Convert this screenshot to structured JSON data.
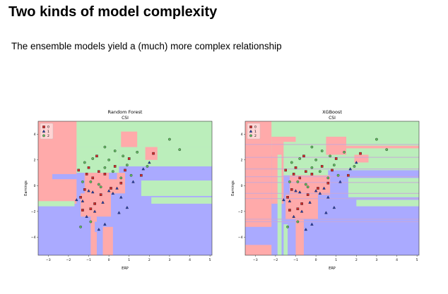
{
  "slide": {
    "title": "Two kinds of model complexity",
    "subtitle": "The ensemble models yield a (much) more complex relationship"
  },
  "colors": {
    "class_0_region": "#ffaaaa",
    "class_1_region": "#aaaaff",
    "class_2_region": "#bbeebb",
    "class_0_marker": "#d62728",
    "class_1_marker": "#1f3bb3",
    "class_2_marker": "#5fbf5f"
  },
  "chart_data": [
    {
      "type": "scatter",
      "title": "Random Forest",
      "subtitle": "CSI",
      "xlabel": "ERP",
      "ylabel": "Earnings",
      "xlim": [
        -3.5,
        5.1
      ],
      "ylim": [
        -5.4,
        5.0
      ],
      "xticks": [
        -3,
        -2,
        -1,
        0,
        1,
        2,
        3,
        4,
        5
      ],
      "yticks": [
        -4,
        -2,
        0,
        2,
        4
      ],
      "legend": {
        "placement": "top-left",
        "entries": [
          "0",
          "1",
          "2"
        ]
      },
      "series": [
        {
          "name": "0",
          "marker": "square",
          "points": [
            [
              -1.0,
              1.4
            ],
            [
              -0.8,
              0.6
            ],
            [
              -1.2,
              -0.3
            ],
            [
              -0.5,
              1.1
            ],
            [
              0.3,
              1.5
            ],
            [
              -0.9,
              -1.8
            ],
            [
              -1.4,
              -0.9
            ],
            [
              -0.6,
              2.3
            ],
            [
              0.6,
              0.2
            ],
            [
              -1.1,
              0.9
            ],
            [
              -0.4,
              -0.7
            ],
            [
              1.0,
              2.1
            ],
            [
              -0.7,
              -1.4
            ],
            [
              0.8,
              1.2
            ],
            [
              -1.5,
              1.2
            ],
            [
              2.2,
              2.5
            ],
            [
              1.6,
              0.8
            ],
            [
              -0.2,
              0.9
            ],
            [
              -1.3,
              -1.9
            ],
            [
              0.1,
              -0.2
            ]
          ]
        },
        {
          "name": "1",
          "marker": "triangle",
          "points": [
            [
              -1.6,
              -1.1
            ],
            [
              -0.8,
              -0.5
            ],
            [
              -0.3,
              -1.3
            ],
            [
              0.6,
              -0.9
            ],
            [
              0.2,
              -0.6
            ],
            [
              -1.0,
              -0.4
            ],
            [
              0.5,
              -2.1
            ],
            [
              -0.7,
              -2.0
            ],
            [
              1.2,
              0.3
            ],
            [
              -0.2,
              -3.0
            ],
            [
              0.9,
              -1.7
            ],
            [
              -1.1,
              -2.4
            ],
            [
              0.0,
              -0.4
            ],
            [
              1.7,
              1.3
            ],
            [
              -0.5,
              -3.4
            ],
            [
              0.4,
              -0.2
            ],
            [
              -1.3,
              -1.2
            ],
            [
              2.0,
              1.8
            ]
          ]
        },
        {
          "name": "2",
          "marker": "circle",
          "points": [
            [
              -1.2,
              1.8
            ],
            [
              0.6,
              0.6
            ],
            [
              0.0,
              2.0
            ],
            [
              -0.9,
              0.3
            ],
            [
              0.9,
              1.6
            ],
            [
              -0.5,
              0.1
            ],
            [
              1.4,
              2.6
            ],
            [
              3.0,
              3.6
            ],
            [
              3.5,
              2.8
            ],
            [
              -0.2,
              1.4
            ],
            [
              -1.3,
              0.3
            ],
            [
              0.3,
              2.7
            ],
            [
              -0.8,
              2.1
            ],
            [
              1.1,
              0.8
            ],
            [
              -0.4,
              -0.1
            ],
            [
              -1.4,
              -3.2
            ],
            [
              0.7,
              2.3
            ],
            [
              -0.9,
              -2.8
            ],
            [
              0.2,
              1.1
            ],
            [
              1.9,
              1.5
            ],
            [
              -0.2,
              3.0
            ]
          ]
        }
      ]
    },
    {
      "type": "scatter",
      "title": "XGBoost",
      "subtitle": "CSI",
      "xlabel": "ERP",
      "ylabel": "Earnings",
      "xlim": [
        -3.5,
        5.1
      ],
      "ylim": [
        -5.4,
        5.0
      ],
      "xticks": [
        -3,
        -2,
        -1,
        0,
        1,
        2,
        3,
        4,
        5
      ],
      "yticks": [
        -4,
        -2,
        0,
        2,
        4
      ],
      "legend": {
        "placement": "top-left",
        "entries": [
          "0",
          "1",
          "2"
        ]
      },
      "series": [
        {
          "name": "0",
          "marker": "square",
          "points": [
            [
              -1.0,
              1.4
            ],
            [
              -0.8,
              0.6
            ],
            [
              -1.2,
              -0.3
            ],
            [
              -0.5,
              1.1
            ],
            [
              0.3,
              1.5
            ],
            [
              -0.9,
              -1.8
            ],
            [
              -1.4,
              -0.9
            ],
            [
              -0.6,
              2.3
            ],
            [
              0.6,
              0.2
            ],
            [
              -1.1,
              0.9
            ],
            [
              -0.4,
              -0.7
            ],
            [
              1.0,
              2.1
            ],
            [
              -0.7,
              -1.4
            ],
            [
              0.8,
              1.2
            ],
            [
              -1.5,
              1.2
            ],
            [
              2.2,
              2.5
            ],
            [
              1.6,
              0.8
            ],
            [
              -0.2,
              0.9
            ],
            [
              -1.3,
              -1.9
            ],
            [
              0.1,
              -0.2
            ]
          ]
        },
        {
          "name": "1",
          "marker": "triangle",
          "points": [
            [
              -1.6,
              -1.1
            ],
            [
              -0.8,
              -0.5
            ],
            [
              -0.3,
              -1.3
            ],
            [
              0.6,
              -0.9
            ],
            [
              0.2,
              -0.6
            ],
            [
              -1.0,
              -0.4
            ],
            [
              0.5,
              -2.1
            ],
            [
              -0.7,
              -2.0
            ],
            [
              1.2,
              0.3
            ],
            [
              -0.2,
              -3.0
            ],
            [
              0.9,
              -1.7
            ],
            [
              -1.1,
              -2.4
            ],
            [
              0.0,
              -0.4
            ],
            [
              1.7,
              1.3
            ],
            [
              -0.5,
              -3.4
            ],
            [
              0.4,
              -0.2
            ],
            [
              -1.3,
              -1.2
            ],
            [
              2.0,
              1.8
            ]
          ]
        },
        {
          "name": "2",
          "marker": "circle",
          "points": [
            [
              -1.2,
              1.8
            ],
            [
              0.6,
              0.6
            ],
            [
              0.0,
              2.0
            ],
            [
              -0.9,
              0.3
            ],
            [
              0.9,
              1.6
            ],
            [
              -0.5,
              0.1
            ],
            [
              1.4,
              2.6
            ],
            [
              3.0,
              3.6
            ],
            [
              3.5,
              2.8
            ],
            [
              -0.2,
              1.4
            ],
            [
              -1.3,
              0.3
            ],
            [
              0.3,
              2.7
            ],
            [
              -0.8,
              2.1
            ],
            [
              1.1,
              0.8
            ],
            [
              -0.4,
              -0.1
            ],
            [
              -1.4,
              -3.2
            ],
            [
              0.7,
              2.3
            ],
            [
              -0.9,
              -2.8
            ],
            [
              0.2,
              1.1
            ],
            [
              1.9,
              1.5
            ],
            [
              -0.2,
              3.0
            ]
          ]
        }
      ]
    }
  ]
}
